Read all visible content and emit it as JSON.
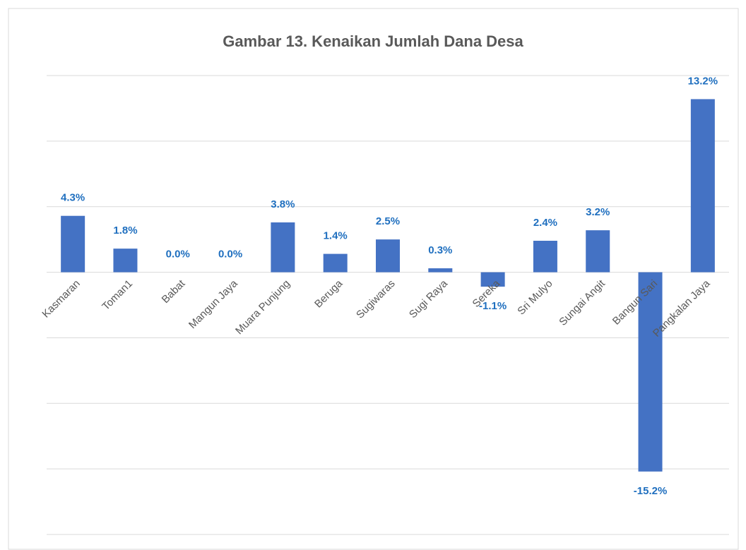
{
  "chart_data": {
    "type": "bar",
    "title": "Gambar 13. Kenaikan Jumlah Dana Desa",
    "categories": [
      "Kasmaran",
      "Toman1",
      "Babat",
      "Mangun Jaya",
      "Muara Punjung",
      "Beruga",
      "Sugiwaras",
      "Sugi Raya",
      "Sereka",
      "Sri Mulyo",
      "Sungai Angit",
      "Bangun Sari",
      "Pangkalan Jaya"
    ],
    "values": [
      4.3,
      1.8,
      0.0,
      0.0,
      3.8,
      1.4,
      2.5,
      0.3,
      -1.1,
      2.4,
      3.2,
      -15.2,
      13.2
    ],
    "value_labels": [
      "4.3%",
      "1.8%",
      "0.0%",
      "0.0%",
      "3.8%",
      "1.4%",
      "2.5%",
      "0.3%",
      "-1.1%",
      "2.4%",
      "3.2%",
      "-15.2%",
      "13.2%"
    ],
    "color": "#4472c4",
    "ylim": [
      -20,
      15
    ],
    "yticks": [
      -20,
      -15,
      -10,
      -5,
      0,
      5,
      10,
      15
    ],
    "grid": true
  }
}
